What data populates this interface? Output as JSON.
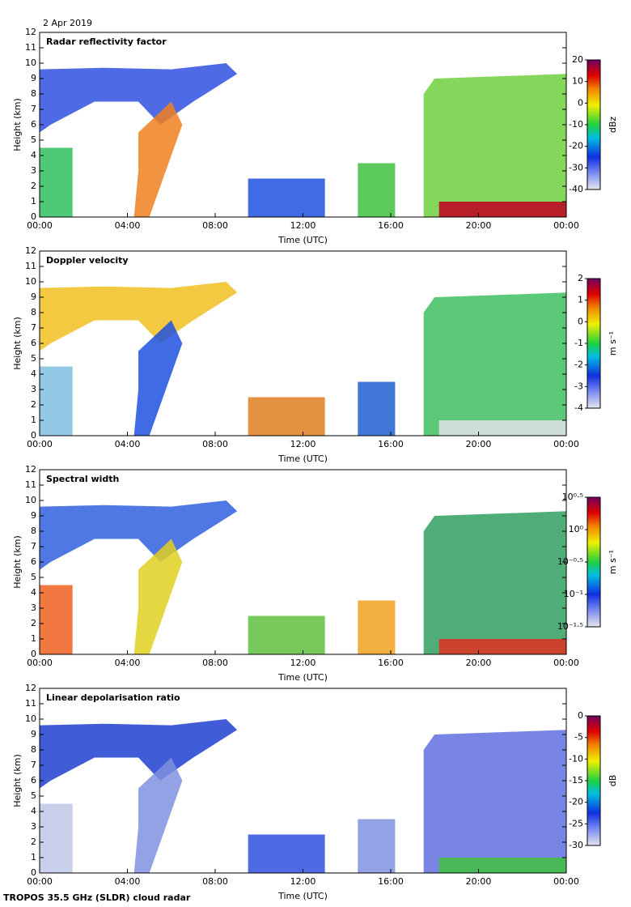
{
  "date": "2 Apr 2019",
  "footer": "TROPOS 35.5 GHz (SLDR) cloud radar",
  "chart_data": [
    {
      "type": "heatmap",
      "title": "Radar reflectivity factor",
      "xlabel": "Time (UTC)",
      "ylabel": "Height (km)",
      "xlim": [
        0,
        24
      ],
      "xticks": [
        {
          "value": 0,
          "label": "00:00"
        },
        {
          "value": 4,
          "label": "04:00"
        },
        {
          "value": 8,
          "label": "08:00"
        },
        {
          "value": 12,
          "label": "12:00"
        },
        {
          "value": 16,
          "label": "16:00"
        },
        {
          "value": 20,
          "label": "20:00"
        },
        {
          "value": 24,
          "label": "00:00"
        }
      ],
      "ylim": [
        0,
        12
      ],
      "yticks": [
        0,
        1,
        2,
        3,
        4,
        5,
        6,
        7,
        8,
        9,
        10,
        11,
        12
      ],
      "clim": [
        -40,
        20
      ],
      "cticks": [
        -40,
        -30,
        -20,
        -10,
        0,
        10,
        20
      ],
      "clabel": "dBz"
    },
    {
      "type": "heatmap",
      "title": "Doppler velocity",
      "xlabel": "Time (UTC)",
      "ylabel": "Height (km)",
      "xlim": [
        0,
        24
      ],
      "xticks": [
        {
          "value": 0,
          "label": "00:00"
        },
        {
          "value": 4,
          "label": "04:00"
        },
        {
          "value": 8,
          "label": "08:00"
        },
        {
          "value": 12,
          "label": "12:00"
        },
        {
          "value": 16,
          "label": "16:00"
        },
        {
          "value": 20,
          "label": "20:00"
        },
        {
          "value": 24,
          "label": "00:00"
        }
      ],
      "ylim": [
        0,
        12
      ],
      "yticks": [
        0,
        1,
        2,
        3,
        4,
        5,
        6,
        7,
        8,
        9,
        10,
        11,
        12
      ],
      "clim": [
        -4,
        2
      ],
      "cticks": [
        -4,
        -3,
        -2,
        -1,
        0,
        1,
        2
      ],
      "clabel": "m s⁻¹"
    },
    {
      "type": "heatmap",
      "title": "Spectral width",
      "xlabel": "Time (UTC)",
      "ylabel": "Height (km)",
      "xlim": [
        0,
        24
      ],
      "xticks": [
        {
          "value": 0,
          "label": "00:00"
        },
        {
          "value": 4,
          "label": "04:00"
        },
        {
          "value": 8,
          "label": "08:00"
        },
        {
          "value": 12,
          "label": "12:00"
        },
        {
          "value": 16,
          "label": "16:00"
        },
        {
          "value": 20,
          "label": "20:00"
        },
        {
          "value": 24,
          "label": "00:00"
        }
      ],
      "ylim": [
        0,
        12
      ],
      "yticks": [
        0,
        1,
        2,
        3,
        4,
        5,
        6,
        7,
        8,
        9,
        10,
        11,
        12
      ],
      "clog": true,
      "clim": [
        0.03162,
        3.162
      ],
      "cticks": [
        {
          "value": 0.03162,
          "label": "10⁻¹·⁵"
        },
        {
          "value": 0.1,
          "label": "10⁻¹"
        },
        {
          "value": 0.3162,
          "label": "10⁻⁰·⁵"
        },
        {
          "value": 1,
          "label": "10⁰"
        },
        {
          "value": 3.162,
          "label": "10⁰·⁵"
        }
      ],
      "clabel": "m s⁻¹"
    },
    {
      "type": "heatmap",
      "title": "Linear depolarisation ratio",
      "xlabel": "Time (UTC)",
      "ylabel": "Height (km)",
      "xlim": [
        0,
        24
      ],
      "xticks": [
        {
          "value": 0,
          "label": "00:00"
        },
        {
          "value": 4,
          "label": "04:00"
        },
        {
          "value": 8,
          "label": "08:00"
        },
        {
          "value": 12,
          "label": "12:00"
        },
        {
          "value": 16,
          "label": "16:00"
        },
        {
          "value": 20,
          "label": "20:00"
        },
        {
          "value": 24,
          "label": "00:00"
        }
      ],
      "ylim": [
        0,
        12
      ],
      "yticks": [
        0,
        1,
        2,
        3,
        4,
        5,
        6,
        7,
        8,
        9,
        10,
        11,
        12
      ],
      "clim": [
        -30,
        0
      ],
      "cticks": [
        -30,
        -25,
        -20,
        -15,
        -10,
        -5,
        0
      ],
      "clabel": "dB"
    }
  ]
}
